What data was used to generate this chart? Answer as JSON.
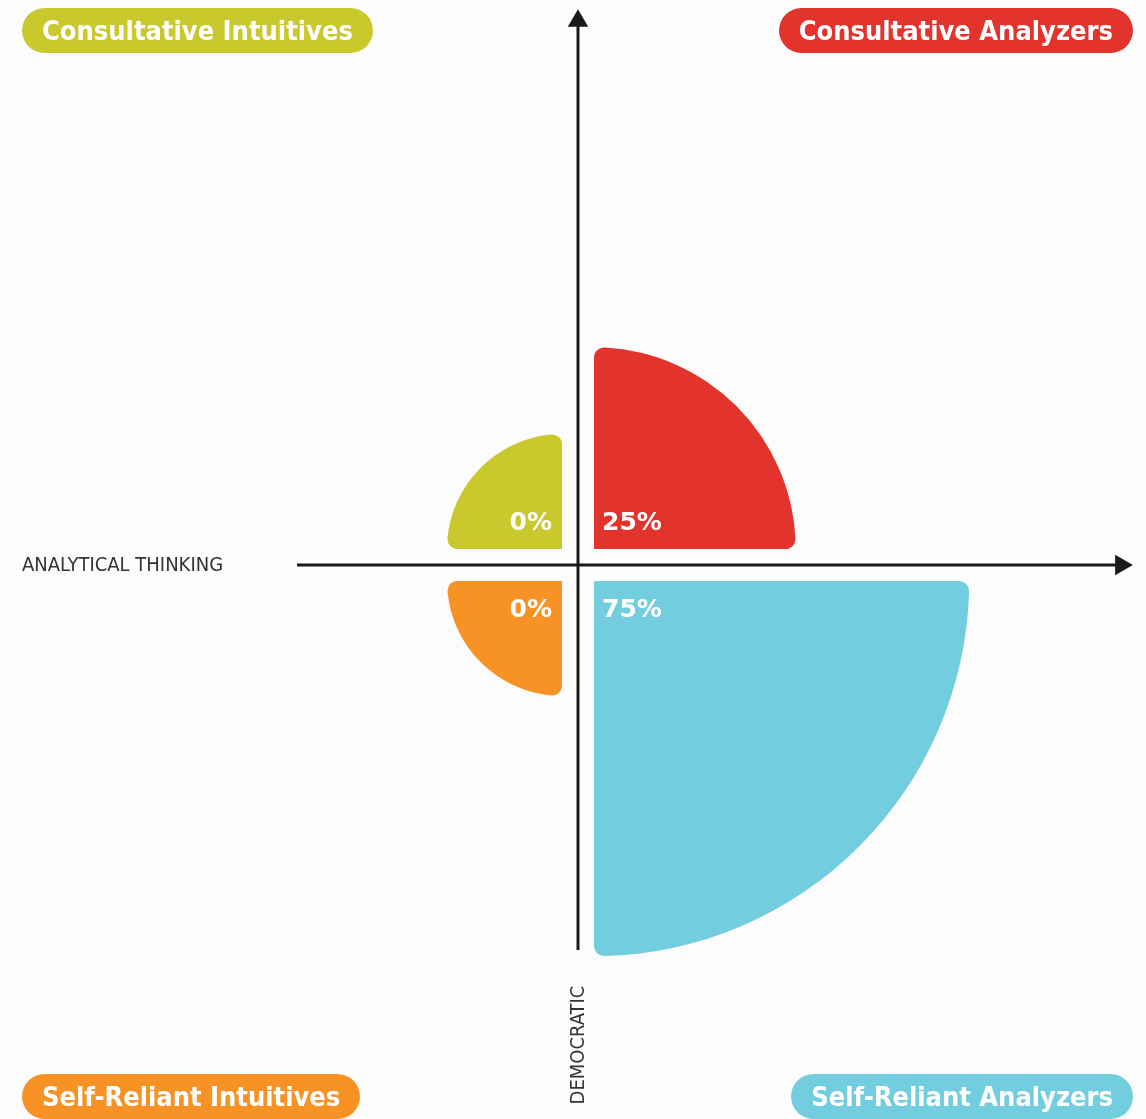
{
  "chart_data": {
    "type": "other",
    "categories": [
      "Consultative Intuitives",
      "Consultative Analyzers",
      "Self-Reliant Intuitives",
      "Self-Reliant Analyzers"
    ],
    "values": [
      0,
      25,
      0,
      75
    ],
    "value_labels": [
      "0%",
      "25%",
      "0%",
      "75%"
    ],
    "colors": [
      "#c9c82d",
      "#e2332c",
      "#f79224",
      "#72cddf"
    ],
    "xlabel": "ANALYTICAL THINKING",
    "ylabel": "DEMOCRATIC"
  }
}
